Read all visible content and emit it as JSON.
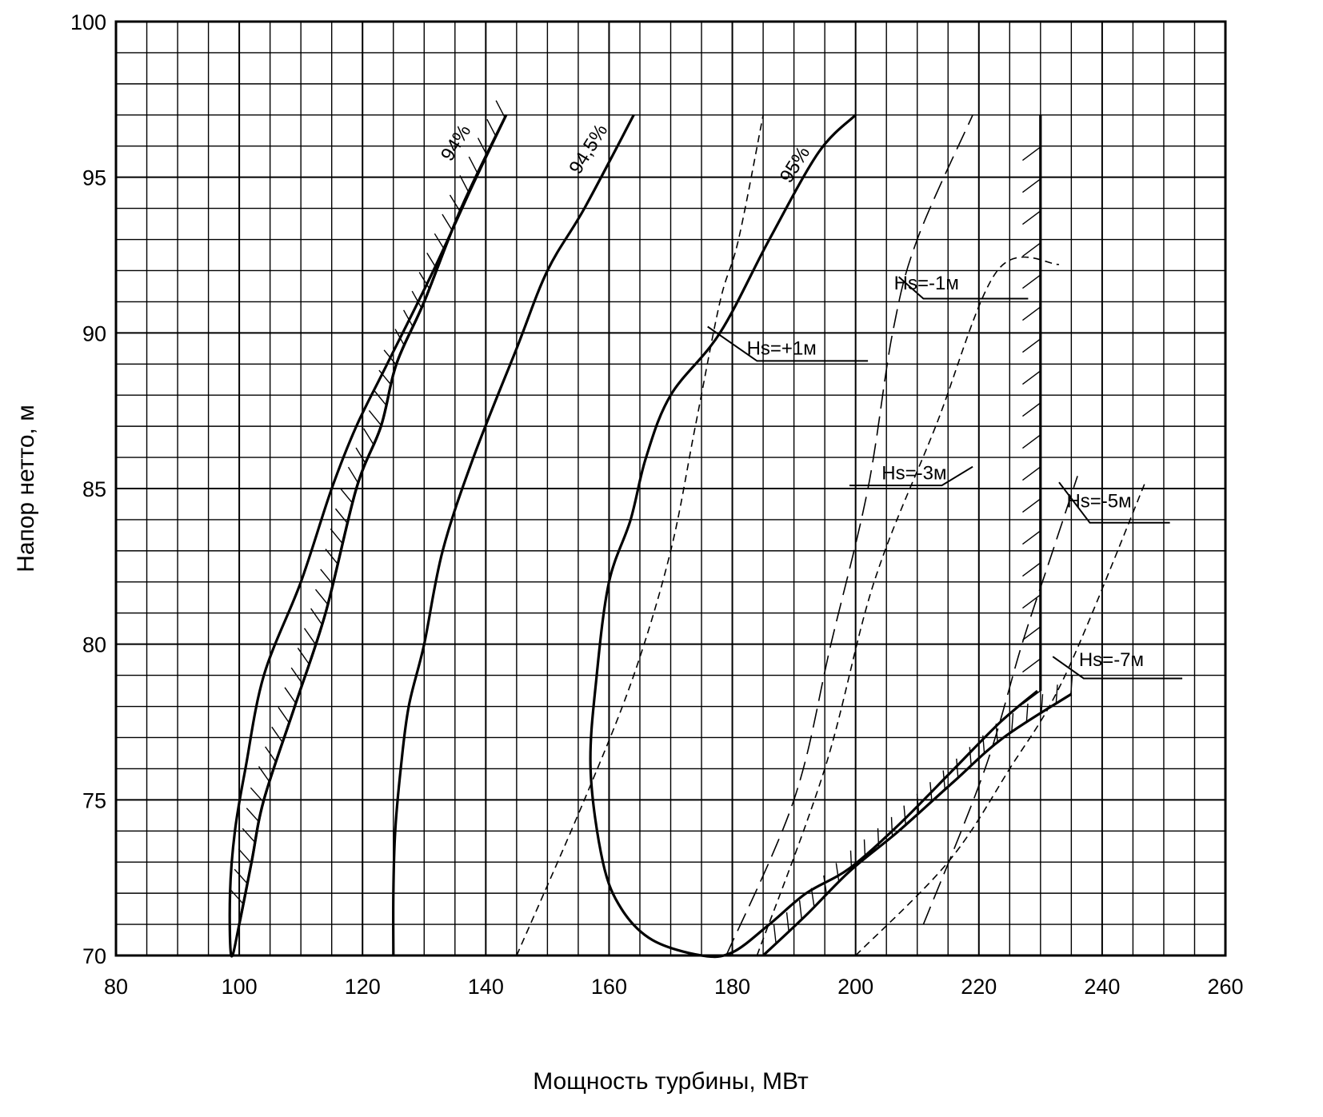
{
  "chart_data": {
    "type": "line",
    "title": "",
    "xlabel": "Мощность турбины, МВт",
    "ylabel": "Напор нетто, м",
    "xlim": [
      80,
      260
    ],
    "ylim": [
      70,
      100
    ],
    "x_ticks": [
      "80",
      "100",
      "120",
      "140",
      "160",
      "180",
      "200",
      "220",
      "240",
      "260"
    ],
    "y_ticks": [
      "70",
      "75",
      "80",
      "85",
      "90",
      "95",
      "100"
    ],
    "grid": true,
    "efficiency_curves": [
      {
        "name": "94%",
        "label": "94%",
        "label_at": [
          136,
          96.0
        ],
        "points": [
          [
            143.3,
            97
          ],
          [
            138,
            94.8
          ],
          [
            131.5,
            92
          ],
          [
            124,
            89
          ],
          [
            119,
            87
          ],
          [
            115,
            85
          ],
          [
            110,
            82
          ],
          [
            104,
            79
          ],
          [
            101,
            76
          ],
          [
            99.3,
            74
          ],
          [
            98.5,
            72
          ],
          [
            98.7,
            70
          ],
          [
            100,
            71
          ],
          [
            102,
            73
          ],
          [
            104,
            75
          ],
          [
            109,
            78
          ],
          [
            114,
            81
          ],
          [
            119,
            85
          ],
          [
            123,
            87
          ],
          [
            125.5,
            89
          ],
          [
            130,
            91
          ],
          [
            136,
            94
          ],
          [
            143.3,
            97
          ]
        ]
      },
      {
        "name": "94.5%",
        "label": "94,5%",
        "label_at": [
          157.5,
          95.8
        ],
        "points": [
          [
            164,
            97
          ],
          [
            156,
            94
          ],
          [
            150,
            92
          ],
          [
            145,
            89.5
          ],
          [
            138,
            86
          ],
          [
            133,
            83
          ],
          [
            130,
            80
          ],
          [
            127.5,
            78
          ],
          [
            126.2,
            76
          ],
          [
            125.3,
            74
          ],
          [
            125,
            72
          ],
          [
            125,
            70
          ]
        ]
      },
      {
        "name": "95%",
        "label": "95%",
        "label_at": [
          191,
          95.3
        ],
        "points": [
          [
            200,
            97
          ],
          [
            194,
            95.8
          ],
          [
            186,
            93
          ],
          [
            178,
            90
          ],
          [
            170,
            88
          ],
          [
            166,
            86
          ],
          [
            163.5,
            84
          ],
          [
            160,
            82
          ],
          [
            158,
            79
          ],
          [
            157,
            76
          ],
          [
            159,
            73
          ],
          [
            162,
            71.5
          ],
          [
            167,
            70.5
          ],
          [
            175,
            70
          ],
          [
            180,
            70.1
          ],
          [
            186,
            71
          ],
          [
            192,
            72
          ],
          [
            199,
            72.8
          ],
          [
            207,
            74.2
          ],
          [
            216,
            76
          ],
          [
            223.5,
            77.5
          ],
          [
            229.5,
            78.5
          ]
        ]
      }
    ],
    "hs_lines": [
      {
        "name": "Hs=+1м",
        "label": "Hs=+1м",
        "label_at": [
          188,
          89.3
        ],
        "leader": [
          [
            176,
            90.2
          ],
          [
            184,
            89.1
          ],
          [
            202,
            89.1
          ]
        ],
        "points": [
          [
            145,
            70
          ],
          [
            156,
            75
          ],
          [
            164,
            79
          ],
          [
            170,
            83
          ],
          [
            174,
            87
          ],
          [
            178,
            91
          ],
          [
            181,
            93
          ],
          [
            185,
            97
          ]
        ]
      },
      {
        "name": "Hs=-1м",
        "label": "Hs=-1м",
        "label_at": [
          211.5,
          91.4
        ],
        "leader": [
          [
            207,
            91.8
          ],
          [
            211,
            91.1
          ],
          [
            228,
            91.1
          ]
        ],
        "points": [
          [
            179,
            70
          ],
          [
            190,
            75
          ],
          [
            196,
            80
          ],
          [
            202,
            85
          ],
          [
            206,
            90
          ],
          [
            210,
            93
          ],
          [
            219,
            97
          ]
        ]
      },
      {
        "name": "Hs=-3м",
        "label": "Hs=-3м",
        "label_at": [
          209.5,
          85.3
        ],
        "leader": [
          [
            219,
            85.7
          ],
          [
            214,
            85.1
          ],
          [
            199,
            85.1
          ]
        ],
        "points": [
          [
            184,
            70
          ],
          [
            195,
            76
          ],
          [
            203,
            82
          ],
          [
            213,
            87
          ],
          [
            223,
            92
          ],
          [
            233,
            92.2
          ]
        ]
      },
      {
        "name": "Hs=-5м",
        "label": "Hs=-5м",
        "label_at": [
          239.5,
          84.4
        ],
        "leader": [
          [
            233,
            85.2
          ],
          [
            238,
            83.9
          ],
          [
            251,
            83.9
          ]
        ],
        "points": [
          [
            211,
            71
          ],
          [
            221,
            76
          ],
          [
            227,
            80
          ],
          [
            232,
            83
          ],
          [
            236,
            85.4
          ]
        ]
      },
      {
        "name": "Hs=-7м",
        "label": "Hs=-7м",
        "label_at": [
          241.5,
          79.3
        ],
        "leader": [
          [
            232,
            79.6
          ],
          [
            237,
            78.9
          ],
          [
            253,
            78.9
          ]
        ],
        "points": [
          [
            200,
            70
          ],
          [
            215,
            73
          ],
          [
            225,
            76
          ],
          [
            234,
            79
          ],
          [
            247,
            85.2
          ]
        ]
      }
    ],
    "boundaries": [
      {
        "name": "left-zone-boundary",
        "hatched": true,
        "points": [
          [
            100,
            71
          ],
          [
            102,
            73
          ],
          [
            104,
            75
          ],
          [
            109,
            78
          ],
          [
            114,
            81
          ],
          [
            119,
            85
          ],
          [
            123,
            87
          ],
          [
            125.5,
            89
          ],
          [
            130,
            91
          ],
          [
            136,
            94
          ],
          [
            143.3,
            97
          ]
        ]
      },
      {
        "name": "max-power-limit",
        "hatched": true,
        "points": [
          [
            230,
            97
          ],
          [
            230,
            78.5
          ]
        ]
      },
      {
        "name": "bottom-right-boundary",
        "hatched": true,
        "points": [
          [
            185,
            70
          ],
          [
            192,
            71.3
          ],
          [
            199,
            72.7
          ],
          [
            207,
            74
          ],
          [
            216,
            75.6
          ],
          [
            224,
            77
          ],
          [
            235,
            78.4
          ]
        ]
      }
    ]
  }
}
